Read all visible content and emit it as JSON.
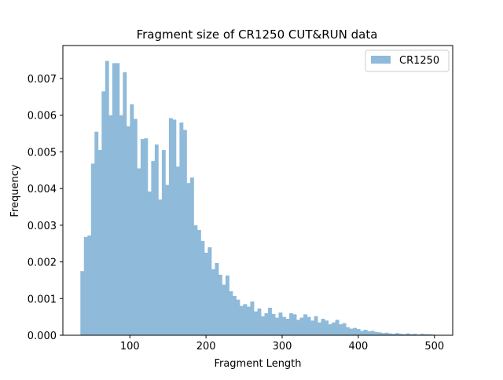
{
  "chart_data": {
    "type": "bar",
    "title": "Fragment size of CR1250 CUT&RUN data",
    "xlabel": "Fragment Length",
    "ylabel": "Frequency",
    "xlim": [
      12,
      524
    ],
    "ylim": [
      0,
      0.0079
    ],
    "xticks": [
      {
        "value": 100,
        "label": "100"
      },
      {
        "value": 200,
        "label": "200"
      },
      {
        "value": 300,
        "label": "300"
      },
      {
        "value": 400,
        "label": "400"
      },
      {
        "value": 500,
        "label": "500"
      }
    ],
    "yticks": [
      {
        "value": 0.0,
        "label": "0.000"
      },
      {
        "value": 0.001,
        "label": "0.001"
      },
      {
        "value": 0.002,
        "label": "0.002"
      },
      {
        "value": 0.003,
        "label": "0.003"
      },
      {
        "value": 0.004,
        "label": "0.004"
      },
      {
        "value": 0.005,
        "label": "0.005"
      },
      {
        "value": 0.006,
        "label": "0.006"
      },
      {
        "value": 0.007,
        "label": "0.007"
      }
    ],
    "legend": {
      "position": "top-right"
    },
    "series": [
      {
        "name": "CR1250",
        "color": "#8fbad9",
        "bin_start": 35,
        "bin_width": 4.65,
        "values": [
          0.00175,
          0.00268,
          0.00272,
          0.00468,
          0.00555,
          0.00505,
          0.00665,
          0.00748,
          0.006,
          0.00742,
          0.00742,
          0.006,
          0.00717,
          0.0057,
          0.0063,
          0.0059,
          0.00455,
          0.00535,
          0.00537,
          0.00392,
          0.00475,
          0.0052,
          0.0037,
          0.00505,
          0.0041,
          0.00592,
          0.00588,
          0.0046,
          0.0058,
          0.0056,
          0.00415,
          0.0043,
          0.003,
          0.00287,
          0.00257,
          0.00225,
          0.0024,
          0.0018,
          0.00197,
          0.00165,
          0.00138,
          0.00163,
          0.0012,
          0.00107,
          0.00097,
          0.0008,
          0.00085,
          0.00078,
          0.00092,
          0.00065,
          0.00073,
          0.00052,
          0.0006,
          0.00075,
          0.00058,
          0.00048,
          0.00062,
          0.0005,
          0.00045,
          0.0006,
          0.00057,
          0.00042,
          0.00048,
          0.00057,
          0.0005,
          0.0004,
          0.00052,
          0.00035,
          0.00045,
          0.0004,
          0.0003,
          0.00035,
          0.00042,
          0.0003,
          0.00033,
          0.00022,
          0.00018,
          0.0002,
          0.00017,
          0.00012,
          0.00015,
          0.00011,
          0.00012,
          9e-05,
          8e-05,
          6e-05,
          7e-05,
          5e-05,
          4e-05,
          6e-05,
          4e-05,
          3e-05,
          5e-05,
          3e-05,
          4e-05,
          2e-05,
          4e-05,
          3e-05,
          3e-05,
          2e-05
        ]
      }
    ]
  }
}
